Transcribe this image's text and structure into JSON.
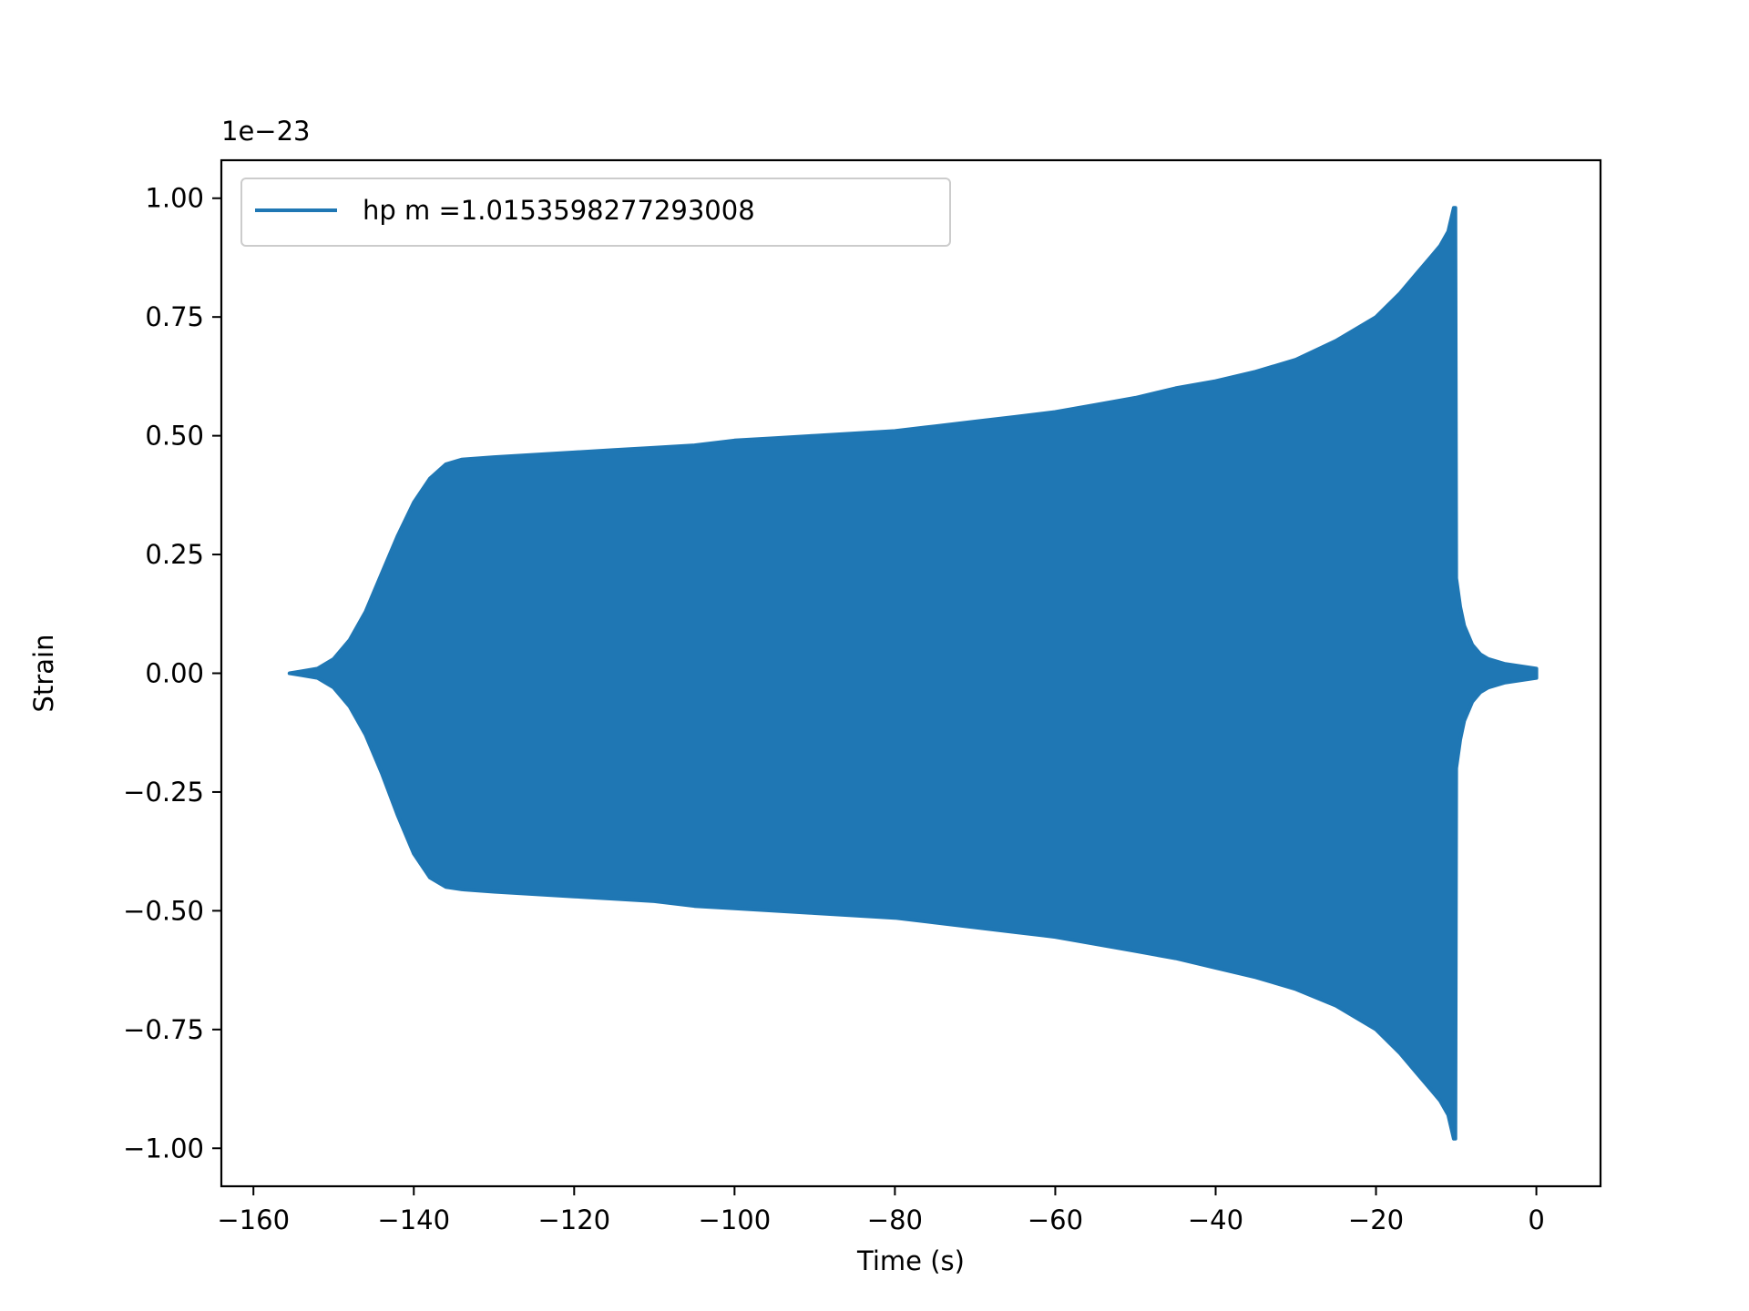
{
  "chart_data": {
    "type": "line",
    "title": "",
    "xlabel": "Time (s)",
    "ylabel": "Strain",
    "offset_text": "1e−23",
    "y_scale_exponent": -23,
    "xlim": [
      -164,
      8
    ],
    "ylim": [
      -1.08,
      1.08
    ],
    "x_ticks": [
      -160,
      -140,
      -120,
      -100,
      -80,
      -60,
      -40,
      -20,
      0
    ],
    "x_tick_labels": [
      "−160",
      "−140",
      "−120",
      "−100",
      "−80",
      "−60",
      "−40",
      "−20",
      "0"
    ],
    "y_ticks": [
      1.0,
      0.75,
      0.5,
      0.25,
      0.0,
      -0.25,
      -0.5,
      -0.75,
      -1.0
    ],
    "y_tick_labels": [
      "1.00",
      "0.75",
      "0.50",
      "0.25",
      "0.00",
      "−0.25",
      "−0.50",
      "−0.75",
      "−1.00"
    ],
    "grid": false,
    "legend": {
      "position": "upper left"
    },
    "series": [
      {
        "name": "hp m =1.0153598277293008",
        "color": "#1f77b4",
        "style": "dense oscillating chirp (filled envelope)",
        "t_start": -155.5,
        "t_end": 0,
        "upper_envelope": [
          [
            -155.5,
            0.0
          ],
          [
            -154,
            0.004
          ],
          [
            -152,
            0.01
          ],
          [
            -150,
            0.03
          ],
          [
            -148,
            0.07
          ],
          [
            -146,
            0.13
          ],
          [
            -144,
            0.21
          ],
          [
            -142,
            0.29
          ],
          [
            -140,
            0.36
          ],
          [
            -138,
            0.41
          ],
          [
            -136,
            0.44
          ],
          [
            -134,
            0.45
          ],
          [
            -130,
            0.455
          ],
          [
            -125,
            0.46
          ],
          [
            -120,
            0.465
          ],
          [
            -115,
            0.47
          ],
          [
            -110,
            0.475
          ],
          [
            -105,
            0.48
          ],
          [
            -100,
            0.49
          ],
          [
            -95,
            0.495
          ],
          [
            -90,
            0.5
          ],
          [
            -85,
            0.505
          ],
          [
            -80,
            0.51
          ],
          [
            -75,
            0.52
          ],
          [
            -70,
            0.53
          ],
          [
            -65,
            0.54
          ],
          [
            -60,
            0.55
          ],
          [
            -55,
            0.565
          ],
          [
            -50,
            0.58
          ],
          [
            -45,
            0.6
          ],
          [
            -40,
            0.615
          ],
          [
            -35,
            0.635
          ],
          [
            -30,
            0.66
          ],
          [
            -25,
            0.7
          ],
          [
            -20,
            0.75
          ],
          [
            -17,
            0.8
          ],
          [
            -15,
            0.84
          ],
          [
            -13,
            0.88
          ],
          [
            -12,
            0.9
          ],
          [
            -11,
            0.93
          ],
          [
            -10.3,
            0.98
          ],
          [
            -10.1,
            0.98
          ],
          [
            -10,
            0.2
          ],
          [
            -9.5,
            0.14
          ],
          [
            -9,
            0.1
          ],
          [
            -8,
            0.06
          ],
          [
            -7,
            0.04
          ],
          [
            -6,
            0.03
          ],
          [
            -4,
            0.02
          ],
          [
            -2,
            0.015
          ],
          [
            0,
            0.01
          ]
        ],
        "lower_envelope": [
          [
            -155.5,
            0.0
          ],
          [
            -154,
            -0.004
          ],
          [
            -152,
            -0.01
          ],
          [
            -150,
            -0.03
          ],
          [
            -148,
            -0.07
          ],
          [
            -146,
            -0.13
          ],
          [
            -144,
            -0.21
          ],
          [
            -142,
            -0.3
          ],
          [
            -140,
            -0.38
          ],
          [
            -138,
            -0.43
          ],
          [
            -136,
            -0.45
          ],
          [
            -134,
            -0.455
          ],
          [
            -130,
            -0.46
          ],
          [
            -125,
            -0.465
          ],
          [
            -120,
            -0.47
          ],
          [
            -115,
            -0.475
          ],
          [
            -110,
            -0.48
          ],
          [
            -105,
            -0.49
          ],
          [
            -100,
            -0.495
          ],
          [
            -95,
            -0.5
          ],
          [
            -90,
            -0.505
          ],
          [
            -85,
            -0.51
          ],
          [
            -80,
            -0.515
          ],
          [
            -75,
            -0.525
          ],
          [
            -70,
            -0.535
          ],
          [
            -65,
            -0.545
          ],
          [
            -60,
            -0.555
          ],
          [
            -55,
            -0.57
          ],
          [
            -50,
            -0.585
          ],
          [
            -45,
            -0.6
          ],
          [
            -40,
            -0.62
          ],
          [
            -35,
            -0.64
          ],
          [
            -30,
            -0.665
          ],
          [
            -25,
            -0.7
          ],
          [
            -20,
            -0.75
          ],
          [
            -17,
            -0.8
          ],
          [
            -15,
            -0.84
          ],
          [
            -13,
            -0.88
          ],
          [
            -12,
            -0.9
          ],
          [
            -11,
            -0.93
          ],
          [
            -10.3,
            -0.98
          ],
          [
            -10.1,
            -0.98
          ],
          [
            -10,
            -0.2
          ],
          [
            -9.5,
            -0.14
          ],
          [
            -9,
            -0.1
          ],
          [
            -8,
            -0.06
          ],
          [
            -7,
            -0.04
          ],
          [
            -6,
            -0.03
          ],
          [
            -4,
            -0.02
          ],
          [
            -2,
            -0.015
          ],
          [
            0,
            -0.01
          ]
        ]
      }
    ]
  }
}
